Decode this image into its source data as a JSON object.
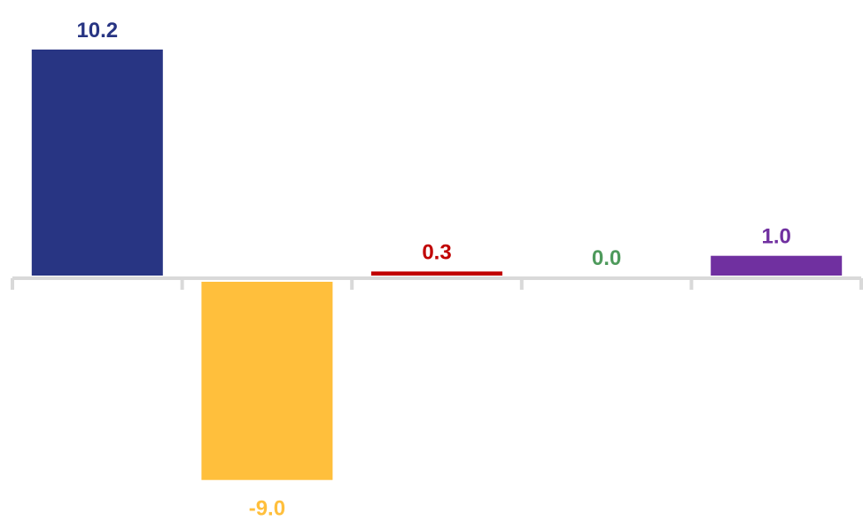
{
  "chart_data": {
    "type": "bar",
    "categories": [
      "",
      "",
      "",
      "",
      ""
    ],
    "values": [
      10.2,
      -9.0,
      0.3,
      0.0,
      1.0
    ],
    "labels": [
      "10.2",
      "-9.0",
      "0.3",
      "0.0",
      "1.0"
    ],
    "colors": [
      "#283583",
      "#FFBF3C",
      "#C00000",
      "#4E9A5C",
      "#7030A0"
    ],
    "axis_color": "#D9D9D9",
    "title": "",
    "xlabel": "",
    "ylabel": "",
    "ylim": [
      -9.5,
      10.5
    ],
    "grid": false,
    "legend": "none"
  }
}
